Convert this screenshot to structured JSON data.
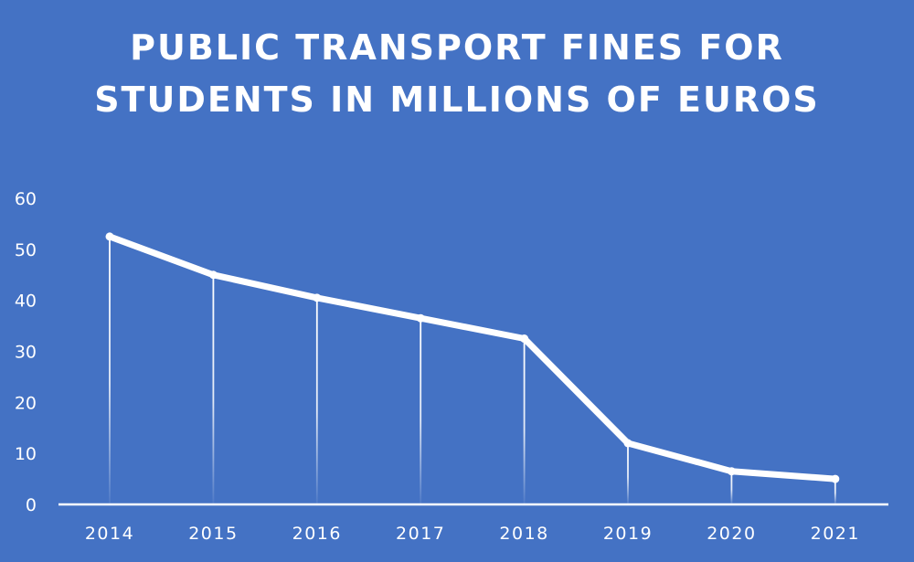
{
  "chart_data": {
    "type": "line",
    "title_lines": [
      "PUBLIC TRANSPORT FINES FOR",
      "STUDENTS IN MILLIONS OF EUROS"
    ],
    "x": [
      "2014",
      "2015",
      "2016",
      "2017",
      "2018",
      "2019",
      "2020",
      "2021"
    ],
    "series": [
      {
        "values": [
          52.5,
          45,
          40.5,
          36.5,
          32.5,
          12,
          6.5,
          5
        ]
      }
    ],
    "yticks": [
      "0",
      "10",
      "20",
      "30",
      "40",
      "50",
      "60"
    ],
    "ylim": [
      0,
      60
    ],
    "grid": false,
    "drop_lines": true,
    "colors": {
      "background": "#4472C4",
      "line": "#FFFFFF",
      "text": "#FFFFFF"
    }
  }
}
